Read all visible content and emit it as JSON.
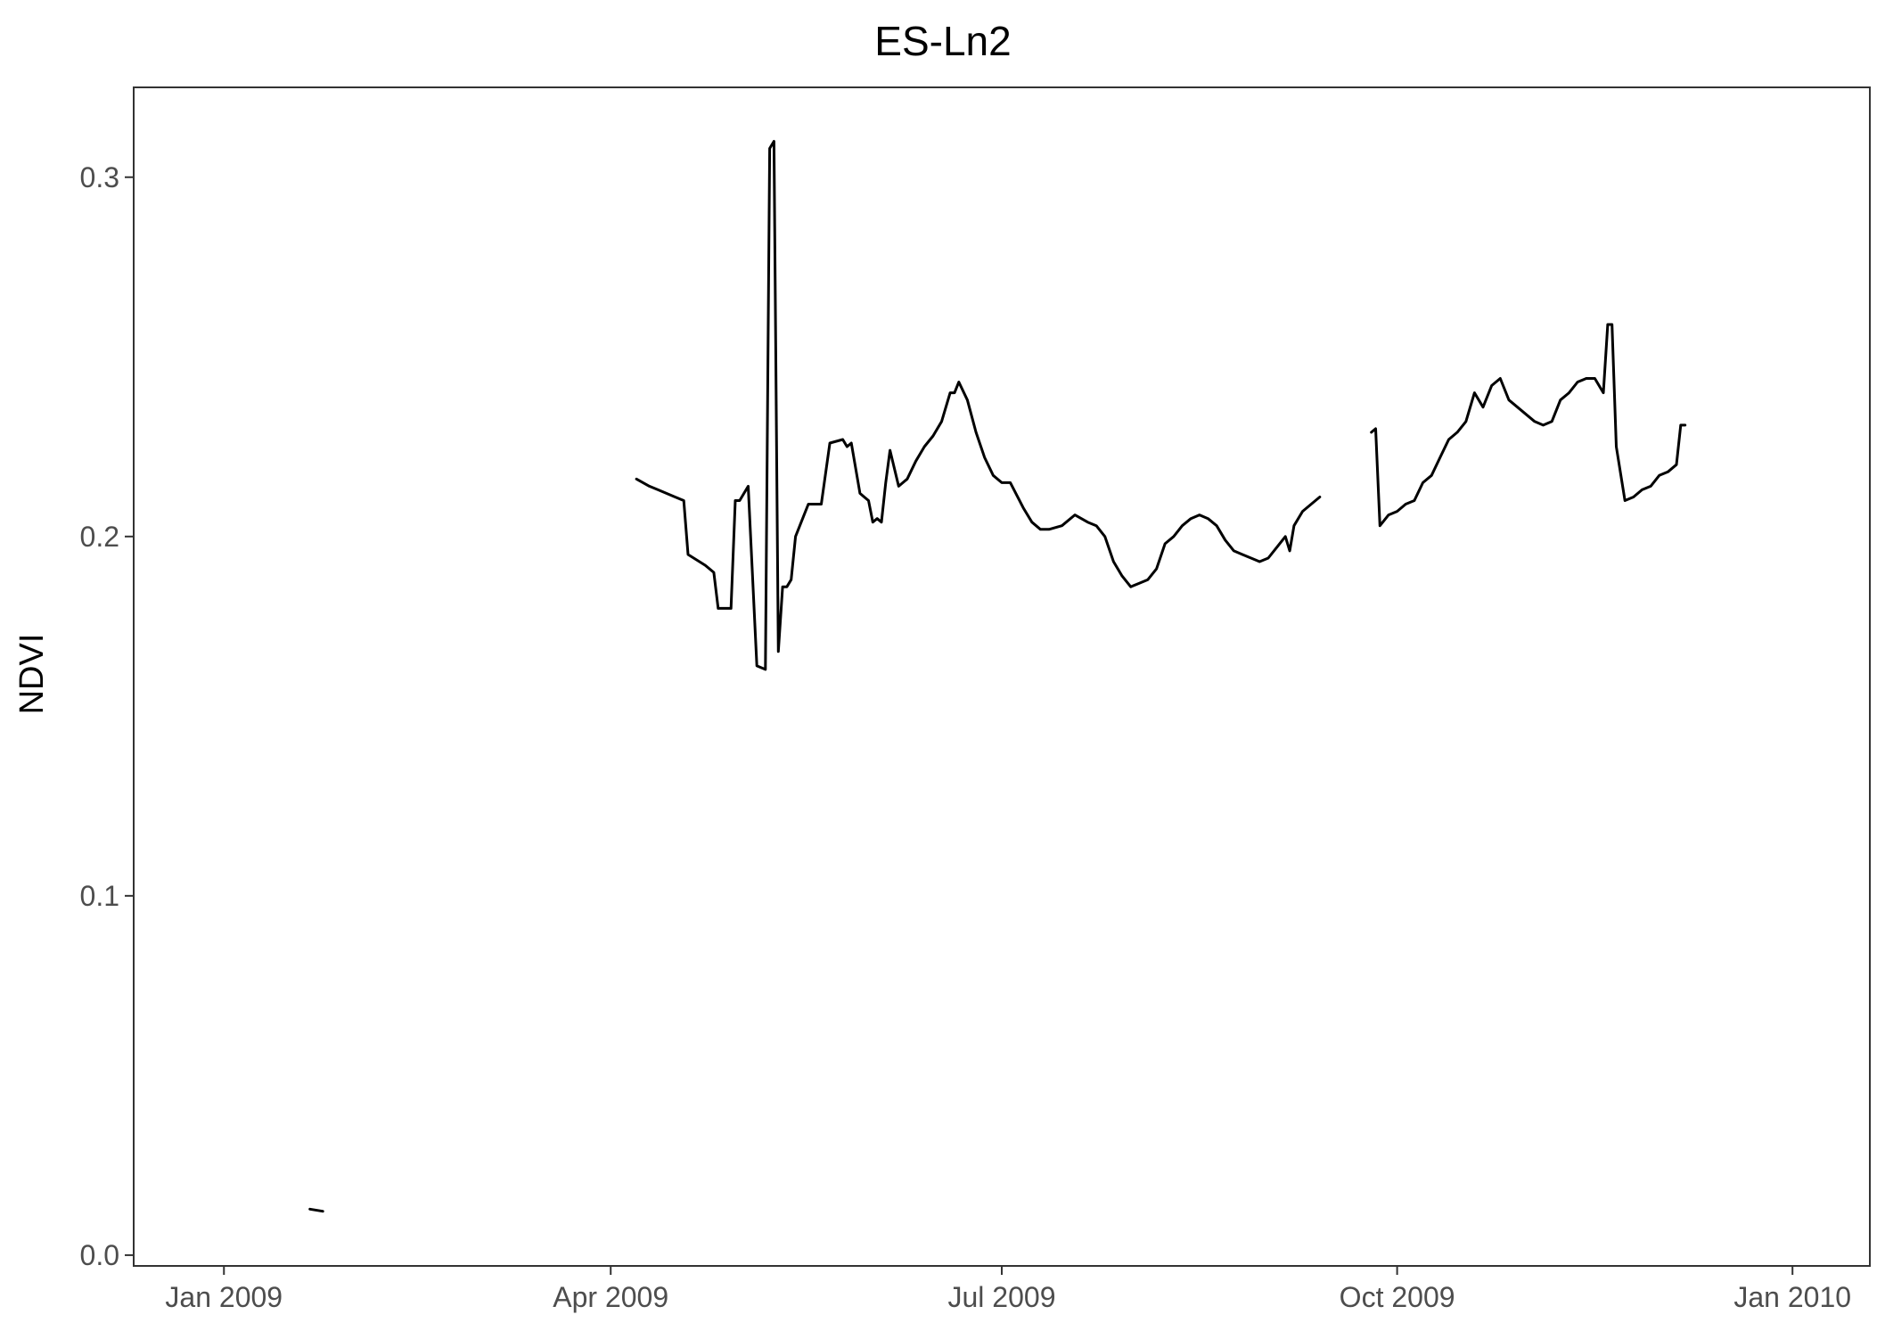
{
  "chart_data": {
    "type": "line",
    "title": "ES-Ln2",
    "xlabel": "",
    "ylabel": "NDVI",
    "x_scale": "date",
    "xlim": [
      "2008-12-11",
      "2010-01-19"
    ],
    "ylim": [
      -0.003,
      0.325
    ],
    "x_ticks": [
      {
        "date": "2009-01-01",
        "label": "Jan 2009"
      },
      {
        "date": "2009-04-01",
        "label": "Apr 2009"
      },
      {
        "date": "2009-07-01",
        "label": "Jul 2009"
      },
      {
        "date": "2009-10-01",
        "label": "Oct 2009"
      },
      {
        "date": "2010-01-01",
        "label": "Jan 2010"
      }
    ],
    "y_ticks": [
      {
        "value": 0.0,
        "label": "0.0"
      },
      {
        "value": 0.1,
        "label": "0.1"
      },
      {
        "value": 0.2,
        "label": "0.2"
      },
      {
        "value": 0.3,
        "label": "0.3"
      }
    ],
    "grid": false,
    "legend": "none",
    "line_color": "#000000",
    "segments": [
      {
        "x": [
          "2009-01-21",
          "2009-01-24"
        ],
        "y": [
          0.0128,
          0.0122
        ]
      },
      {
        "x": [
          "2009-04-07",
          "2009-04-10",
          "2009-04-12",
          "2009-04-16",
          "2009-04-18",
          "2009-04-19",
          "2009-04-23",
          "2009-04-25",
          "2009-04-26",
          "2009-04-29",
          "2009-04-30",
          "2009-05-01",
          "2009-05-03",
          "2009-05-05",
          "2009-05-07",
          "2009-05-08",
          "2009-05-09",
          "2009-05-10",
          "2009-05-11",
          "2009-05-12",
          "2009-05-13",
          "2009-05-14",
          "2009-05-15",
          "2009-05-16",
          "2009-05-17",
          "2009-05-18",
          "2009-05-19",
          "2009-05-20",
          "2009-05-22",
          "2009-05-25",
          "2009-05-26",
          "2009-05-27",
          "2009-05-29",
          "2009-05-30",
          "2009-05-31",
          "2009-06-01",
          "2009-06-02",
          "2009-06-03",
          "2009-06-04",
          "2009-06-05",
          "2009-06-07",
          "2009-06-09",
          "2009-06-11",
          "2009-06-13",
          "2009-06-15",
          "2009-06-17",
          "2009-06-19",
          "2009-06-20",
          "2009-06-21",
          "2009-06-23",
          "2009-06-25",
          "2009-06-27",
          "2009-06-29",
          "2009-07-01",
          "2009-07-03",
          "2009-07-06",
          "2009-07-08",
          "2009-07-10",
          "2009-07-12",
          "2009-07-15",
          "2009-07-18",
          "2009-07-21",
          "2009-07-23",
          "2009-07-25",
          "2009-07-27",
          "2009-07-29",
          "2009-07-31",
          "2009-08-02",
          "2009-08-04",
          "2009-08-06",
          "2009-08-08",
          "2009-08-10",
          "2009-08-12",
          "2009-08-14",
          "2009-08-16",
          "2009-08-18",
          "2009-08-20",
          "2009-08-22",
          "2009-08-24",
          "2009-08-26",
          "2009-08-28",
          "2009-08-30",
          "2009-09-01",
          "2009-09-03",
          "2009-09-05",
          "2009-09-06",
          "2009-09-07",
          "2009-09-09",
          "2009-09-11",
          "2009-09-13"
        ],
        "y": [
          0.216,
          0.214,
          0.213,
          0.211,
          0.21,
          0.195,
          0.192,
          0.19,
          0.18,
          0.18,
          0.21,
          0.21,
          0.214,
          0.164,
          0.163,
          0.308,
          0.31,
          0.168,
          0.186,
          0.186,
          0.188,
          0.2,
          0.203,
          0.206,
          0.209,
          0.209,
          0.209,
          0.209,
          0.226,
          0.227,
          0.225,
          0.226,
          0.212,
          0.211,
          0.21,
          0.204,
          0.205,
          0.204,
          0.215,
          0.224,
          0.214,
          0.216,
          0.221,
          0.225,
          0.228,
          0.232,
          0.24,
          0.24,
          0.243,
          0.238,
          0.229,
          0.222,
          0.217,
          0.215,
          0.215,
          0.208,
          0.204,
          0.202,
          0.202,
          0.203,
          0.206,
          0.204,
          0.203,
          0.2,
          0.193,
          0.189,
          0.186,
          0.187,
          0.188,
          0.191,
          0.198,
          0.2,
          0.203,
          0.205,
          0.206,
          0.205,
          0.203,
          0.199,
          0.196,
          0.195,
          0.194,
          0.193,
          0.194,
          0.197,
          0.2,
          0.196,
          0.203,
          0.207,
          0.209,
          0.211
        ]
      },
      {
        "x": [
          "2009-09-25",
          "2009-09-26",
          "2009-09-27",
          "2009-09-29",
          "2009-10-01",
          "2009-10-03",
          "2009-10-05",
          "2009-10-07",
          "2009-10-09",
          "2009-10-11",
          "2009-10-13",
          "2009-10-15",
          "2009-10-17",
          "2009-10-19",
          "2009-10-21",
          "2009-10-23",
          "2009-10-25",
          "2009-10-27",
          "2009-10-29",
          "2009-10-31",
          "2009-11-02",
          "2009-11-04",
          "2009-11-06",
          "2009-11-08",
          "2009-11-10",
          "2009-11-12",
          "2009-11-14",
          "2009-11-16",
          "2009-11-18",
          "2009-11-19",
          "2009-11-20",
          "2009-11-21",
          "2009-11-23",
          "2009-11-25",
          "2009-11-27",
          "2009-11-29",
          "2009-12-01",
          "2009-12-03",
          "2009-12-05",
          "2009-12-06",
          "2009-12-07"
        ],
        "y": [
          0.229,
          0.23,
          0.203,
          0.206,
          0.207,
          0.209,
          0.21,
          0.215,
          0.217,
          0.222,
          0.227,
          0.229,
          0.232,
          0.24,
          0.236,
          0.242,
          0.244,
          0.238,
          0.236,
          0.234,
          0.232,
          0.231,
          0.232,
          0.238,
          0.24,
          0.243,
          0.244,
          0.244,
          0.24,
          0.259,
          0.259,
          0.225,
          0.21,
          0.211,
          0.213,
          0.214,
          0.217,
          0.218,
          0.22,
          0.231,
          0.231
        ]
      }
    ]
  }
}
